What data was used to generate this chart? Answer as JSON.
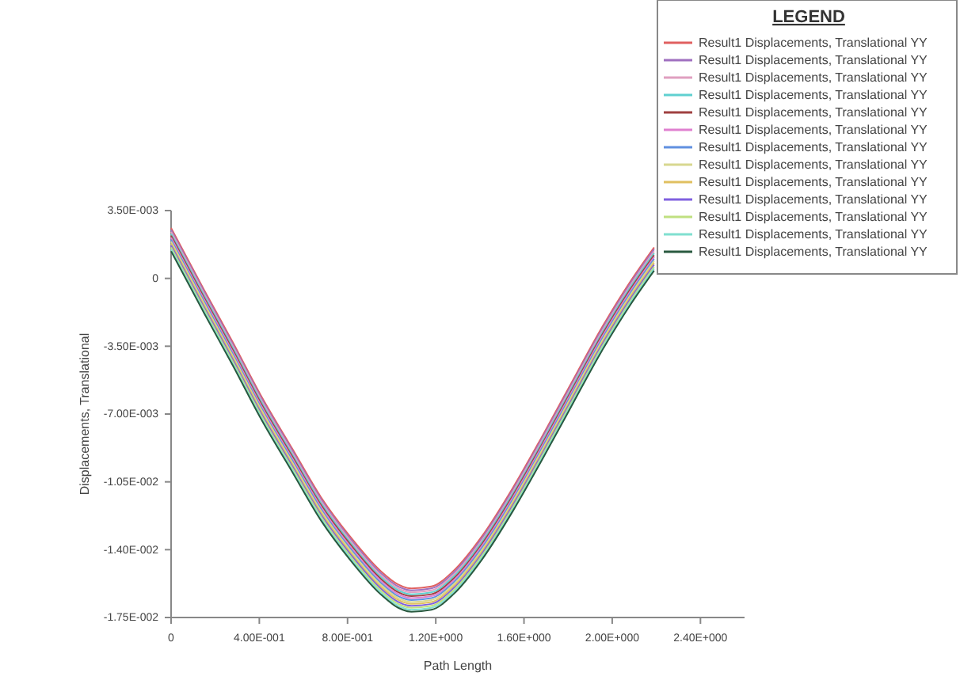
{
  "chart_data": {
    "type": "line",
    "xlabel": "Path Length",
    "ylabel": "Displacements, Translational",
    "legend_title": "LEGEND",
    "legend": "top right",
    "grid": false,
    "marker": "none",
    "line_style": "solid",
    "xlim": [
      0,
      2.6
    ],
    "ylim": [
      -0.0175,
      0.0035
    ],
    "xticks": [
      0,
      {
        "value": 0.4,
        "label": "4.00E-001"
      },
      {
        "value": 0.8,
        "label": "8.00E-001"
      },
      {
        "value": 1.2,
        "label": "1.20E+000"
      },
      {
        "value": 1.6,
        "label": "1.60E+000"
      },
      {
        "value": 2.0,
        "label": "2.00E+000"
      },
      {
        "value": 2.4,
        "label": "2.40E+000"
      }
    ],
    "yticks": [
      {
        "value": 0.0035,
        "label": "3.50E-003"
      },
      0,
      {
        "value": -0.0035,
        "label": "-3.50E-003"
      },
      {
        "value": -0.007,
        "label": "-7.00E-003"
      },
      {
        "value": -0.0105,
        "label": "-1.05E-002"
      },
      {
        "value": -0.014,
        "label": "-1.40E-002"
      },
      {
        "value": -0.0175,
        "label": "-1.75E-002"
      }
    ],
    "x": [
      0,
      0.15,
      0.28,
      0.41,
      0.55,
      0.68,
      0.81,
      0.95,
      1.03,
      1.09,
      1.18,
      1.28,
      1.41,
      1.55,
      1.68,
      1.81,
      1.95,
      2.08,
      2.19
    ],
    "series": [
      {
        "name": "Result1 Displacements, Translational YY",
        "color": "#e06060",
        "values": [
          0.0026,
          -0.0006,
          -0.0033,
          -0.0061,
          -0.0088,
          -0.0113,
          -0.0133,
          -0.0151,
          -0.0158,
          -0.016,
          -0.0159,
          -0.0151,
          -0.0133,
          -0.0108,
          -0.0082,
          -0.0055,
          -0.0026,
          -0.0002,
          0.0016
        ]
      },
      {
        "name": "Result1 Displacements, Translational YY",
        "color": "#a070c0",
        "values": [
          0.0025,
          -0.0007,
          -0.0034,
          -0.0062,
          -0.0089,
          -0.0114,
          -0.0134,
          -0.0152,
          -0.0159,
          -0.0161,
          -0.016,
          -0.0152,
          -0.0134,
          -0.0109,
          -0.0083,
          -0.0056,
          -0.0027,
          -0.0003,
          0.0015
        ]
      },
      {
        "name": "Result1 Displacements, Translational YY",
        "color": "#e0a0c0",
        "values": [
          0.0024,
          -0.0008,
          -0.0035,
          -0.0063,
          -0.009,
          -0.0115,
          -0.0135,
          -0.0153,
          -0.016,
          -0.0162,
          -0.0161,
          -0.0153,
          -0.0135,
          -0.011,
          -0.0084,
          -0.0057,
          -0.0028,
          -0.0004,
          0.0014
        ]
      },
      {
        "name": "Result1 Displacements, Translational YY",
        "color": "#60d0d0",
        "values": [
          0.0023,
          -0.0009,
          -0.0036,
          -0.0064,
          -0.0091,
          -0.0116,
          -0.0136,
          -0.0154,
          -0.0161,
          -0.0163,
          -0.0162,
          -0.0154,
          -0.0136,
          -0.0111,
          -0.0085,
          -0.0058,
          -0.0029,
          -0.0005,
          0.0013
        ]
      },
      {
        "name": "Result1 Displacements, Translational YY",
        "color": "#a04040",
        "values": [
          0.0022,
          -0.001,
          -0.0037,
          -0.0065,
          -0.0092,
          -0.0117,
          -0.0137,
          -0.0155,
          -0.0162,
          -0.0164,
          -0.0163,
          -0.0155,
          -0.0137,
          -0.0112,
          -0.0086,
          -0.0059,
          -0.003,
          -0.0006,
          0.0012
        ]
      },
      {
        "name": "Result1 Displacements, Translational YY",
        "color": "#e080d0",
        "values": [
          0.0021,
          -0.0011,
          -0.0038,
          -0.0066,
          -0.0093,
          -0.0118,
          -0.0138,
          -0.0156,
          -0.0163,
          -0.0165,
          -0.0164,
          -0.0156,
          -0.0138,
          -0.0113,
          -0.0087,
          -0.006,
          -0.0031,
          -0.0007,
          0.0011
        ]
      },
      {
        "name": "Result1 Displacements, Translational YY",
        "color": "#6090e0",
        "values": [
          0.002,
          -0.0012,
          -0.0039,
          -0.0067,
          -0.0094,
          -0.0119,
          -0.0139,
          -0.0157,
          -0.0164,
          -0.0166,
          -0.0165,
          -0.0157,
          -0.0139,
          -0.0114,
          -0.0088,
          -0.0061,
          -0.0032,
          -0.0008,
          0.001
        ]
      },
      {
        "name": "Result1 Displacements, Translational YY",
        "color": "#d8d890",
        "values": [
          0.0019,
          -0.0013,
          -0.004,
          -0.0068,
          -0.0095,
          -0.012,
          -0.014,
          -0.0158,
          -0.0165,
          -0.0167,
          -0.0166,
          -0.0158,
          -0.014,
          -0.0115,
          -0.0089,
          -0.0062,
          -0.0033,
          -0.0009,
          0.0009
        ]
      },
      {
        "name": "Result1 Displacements, Translational YY",
        "color": "#e0c060",
        "values": [
          0.0018,
          -0.0014,
          -0.0041,
          -0.0069,
          -0.0096,
          -0.0121,
          -0.0141,
          -0.0159,
          -0.0166,
          -0.0168,
          -0.0167,
          -0.0159,
          -0.0141,
          -0.0116,
          -0.009,
          -0.0063,
          -0.0034,
          -0.001,
          0.0008
        ]
      },
      {
        "name": "Result1 Displacements, Translational YY",
        "color": "#8060e0",
        "values": [
          0.0017,
          -0.0015,
          -0.0042,
          -0.007,
          -0.0097,
          -0.0122,
          -0.0142,
          -0.016,
          -0.0167,
          -0.0169,
          -0.0168,
          -0.016,
          -0.0142,
          -0.0117,
          -0.0091,
          -0.0064,
          -0.0035,
          -0.0011,
          0.0007
        ]
      },
      {
        "name": "Result1 Displacements, Translational YY",
        "color": "#c0e080",
        "values": [
          0.0016,
          -0.0016,
          -0.0043,
          -0.0071,
          -0.0098,
          -0.0123,
          -0.0143,
          -0.0161,
          -0.0168,
          -0.017,
          -0.0169,
          -0.0161,
          -0.0143,
          -0.0118,
          -0.0092,
          -0.0065,
          -0.0036,
          -0.0012,
          0.0006
        ]
      },
      {
        "name": "Result1 Displacements, Translational YY",
        "color": "#80e0d0",
        "values": [
          0.0015,
          -0.0017,
          -0.0044,
          -0.0072,
          -0.0099,
          -0.0124,
          -0.0144,
          -0.0162,
          -0.0169,
          -0.0171,
          -0.017,
          -0.0162,
          -0.0144,
          -0.0119,
          -0.0093,
          -0.0066,
          -0.0037,
          -0.0013,
          0.0005
        ]
      },
      {
        "name": "Result1 Displacements, Translational YY",
        "color": "#2a5a40",
        "values": [
          0.0014,
          -0.0018,
          -0.0045,
          -0.0073,
          -0.01,
          -0.0125,
          -0.0145,
          -0.0163,
          -0.017,
          -0.0172,
          -0.0171,
          -0.0163,
          -0.0145,
          -0.012,
          -0.0094,
          -0.0067,
          -0.0038,
          -0.0014,
          0.0004
        ]
      }
    ]
  }
}
